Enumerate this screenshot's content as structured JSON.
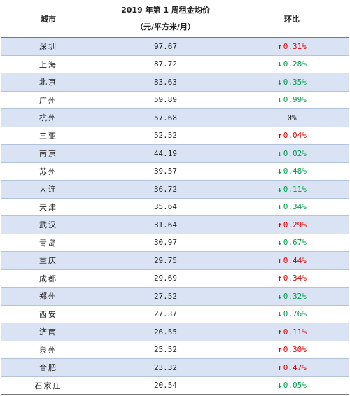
{
  "table": {
    "headers": {
      "city": "城市",
      "price_line1": "2019 年第 1 周租金均价",
      "price_line2": "（元/平方米/月）",
      "change": "环比"
    },
    "rows": [
      {
        "city": "深圳",
        "price": "97.67",
        "dir": "up",
        "change": "0.31%"
      },
      {
        "city": "上海",
        "price": "87.72",
        "dir": "down",
        "change": "0.28%"
      },
      {
        "city": "北京",
        "price": "83.63",
        "dir": "down",
        "change": "0.35%"
      },
      {
        "city": "广州",
        "price": "59.89",
        "dir": "down",
        "change": "0.99%"
      },
      {
        "city": "杭州",
        "price": "57.68",
        "dir": "flat",
        "change": "0%"
      },
      {
        "city": "三亚",
        "price": "52.52",
        "dir": "up",
        "change": "0.04%"
      },
      {
        "city": "南京",
        "price": "44.19",
        "dir": "down",
        "change": "0.02%"
      },
      {
        "city": "苏州",
        "price": "39.57",
        "dir": "down",
        "change": "0.48%"
      },
      {
        "city": "大连",
        "price": "36.72",
        "dir": "down",
        "change": "0.11%"
      },
      {
        "city": "天津",
        "price": "35.64",
        "dir": "down",
        "change": "0.34%"
      },
      {
        "city": "武汉",
        "price": "31.64",
        "dir": "up",
        "change": "0.29%"
      },
      {
        "city": "青岛",
        "price": "30.97",
        "dir": "down",
        "change": "0.67%"
      },
      {
        "city": "重庆",
        "price": "29.75",
        "dir": "up",
        "change": "0.44%"
      },
      {
        "city": "成都",
        "price": "29.69",
        "dir": "up",
        "change": "0.34%"
      },
      {
        "city": "郑州",
        "price": "27.52",
        "dir": "down",
        "change": "0.32%"
      },
      {
        "city": "西安",
        "price": "27.37",
        "dir": "down",
        "change": "0.76%"
      },
      {
        "city": "济南",
        "price": "26.55",
        "dir": "up",
        "change": "0.11%"
      },
      {
        "city": "泉州",
        "price": "25.52",
        "dir": "up",
        "change": "0.30%"
      },
      {
        "city": "合肥",
        "price": "23.32",
        "dir": "up",
        "change": "0.47%"
      },
      {
        "city": "石家庄",
        "price": "20.54",
        "dir": "down",
        "change": "0.05%"
      }
    ]
  },
  "colors": {
    "up": "#e00000",
    "down": "#00a050",
    "stripe": "#dae3f3"
  },
  "icons": {
    "up": "arrow-up-icon",
    "down": "arrow-down-icon"
  }
}
